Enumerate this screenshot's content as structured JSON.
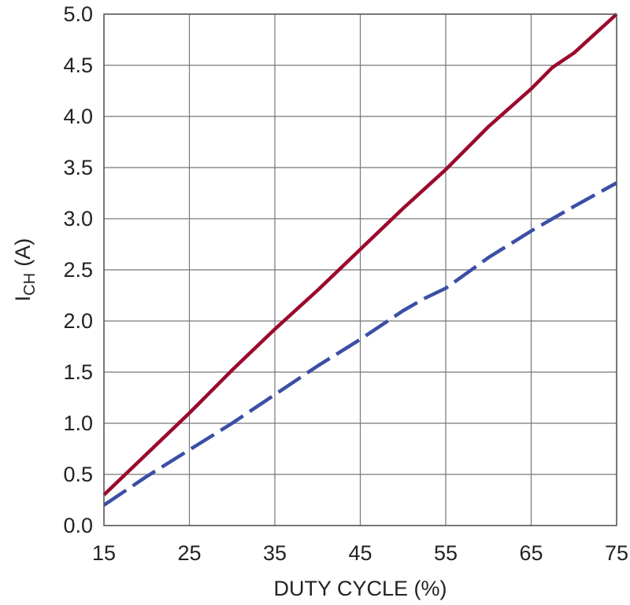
{
  "chart_data": {
    "type": "line",
    "title": "",
    "xlabel": "DUTY CYCLE (%)",
    "ylabel_main": "I",
    "ylabel_sub": "CH",
    "ylabel_unit": "(A)",
    "xlim": [
      15,
      75
    ],
    "ylim": [
      0,
      5
    ],
    "grid": true,
    "legend": "none",
    "x_ticks": [
      15,
      25,
      35,
      45,
      55,
      65,
      75
    ],
    "x_tick_labels": [
      "15",
      "25",
      "35",
      "45",
      "55",
      "65",
      "75"
    ],
    "y_ticks": [
      0,
      0.5,
      1,
      1.5,
      2,
      2.5,
      3,
      3.5,
      4,
      4.5,
      5
    ],
    "y_tick_labels": [
      "0.0",
      "0.5",
      "1.0",
      "1.5",
      "2.0",
      "2.5",
      "3.0",
      "3.5",
      "4.0",
      "4.5",
      "5.0"
    ],
    "series": [
      {
        "color": "#9b0a2c",
        "style": "solid",
        "points": [
          [
            15,
            0.3
          ],
          [
            20,
            0.7
          ],
          [
            25,
            1.1
          ],
          [
            30,
            1.52
          ],
          [
            35,
            1.92
          ],
          [
            40,
            2.3
          ],
          [
            45,
            2.7
          ],
          [
            50,
            3.1
          ],
          [
            55,
            3.48
          ],
          [
            60,
            3.9
          ],
          [
            65,
            4.27
          ],
          [
            67.5,
            4.48
          ],
          [
            70,
            4.62
          ],
          [
            75,
            5.0
          ]
        ]
      },
      {
        "color": "#3b4fa6",
        "style": "dashed",
        "points": [
          [
            15,
            0.2
          ],
          [
            20,
            0.48
          ],
          [
            25,
            0.74
          ],
          [
            30,
            1.0
          ],
          [
            35,
            1.28
          ],
          [
            40,
            1.56
          ],
          [
            45,
            1.82
          ],
          [
            50,
            2.1
          ],
          [
            52.5,
            2.22
          ],
          [
            55,
            2.32
          ],
          [
            57.5,
            2.47
          ],
          [
            60,
            2.62
          ],
          [
            65,
            2.88
          ],
          [
            70,
            3.12
          ],
          [
            75,
            3.35
          ]
        ]
      }
    ]
  }
}
